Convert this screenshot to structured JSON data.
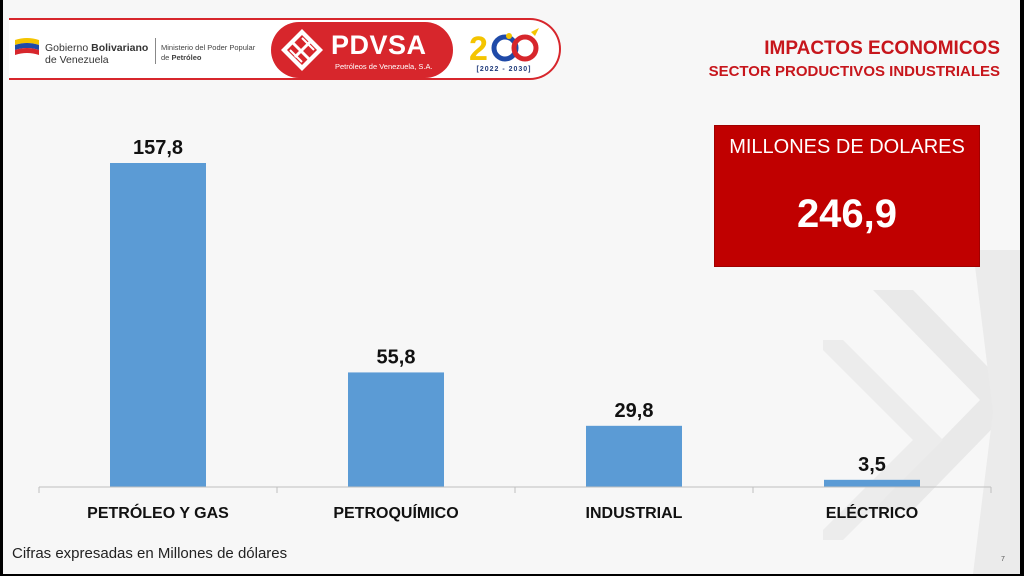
{
  "header": {
    "gov_line1_a": "Gobierno ",
    "gov_line1_b": "Bolivariano",
    "gov_line2": "de Venezuela",
    "ministry_line1": "Ministerio del Poder Popular",
    "ministry_line2_a": "de ",
    "ministry_line2_b": "Petróleo",
    "brand": "PDVSA",
    "brand_sub": "Petróleos de Venezuela, S.A.",
    "anniversary_years": "[2022 - 2030]",
    "colors": {
      "brand_red": "#d7262c",
      "flag_yellow": "#f4c400",
      "flag_blue": "#1f4aa8",
      "flag_red": "#d7262c"
    }
  },
  "title": {
    "main": "IMPACTOS ECONOMICOS",
    "sub": "SECTOR PRODUCTIVOS INDUSTRIALES"
  },
  "total": {
    "label": "MILLONES DE DOLARES",
    "value": "246,9",
    "color": "#c00000"
  },
  "chart_data": {
    "type": "bar",
    "categories": [
      "PETRÓLEO Y GAS",
      "PETROQUÍMICO",
      "INDUSTRIAL",
      "ELÉCTRICO"
    ],
    "values": [
      157.8,
      55.8,
      29.8,
      3.5
    ],
    "value_labels": [
      "157,8",
      "55,8",
      "29,8",
      "3,5"
    ],
    "ylim": [
      0,
      165
    ],
    "grid": false,
    "bar_color": "#5b9bd5"
  },
  "footnote": "Cifras expresadas en Millones de dólares",
  "page_number": "7"
}
